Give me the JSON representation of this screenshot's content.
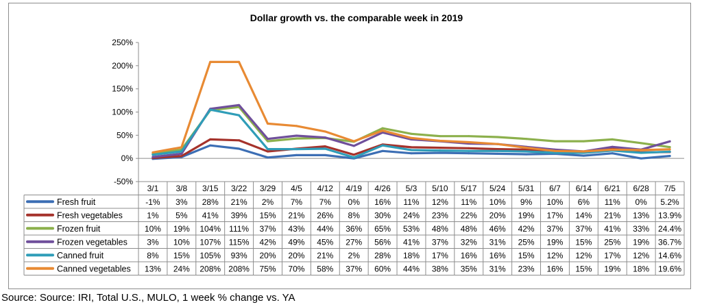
{
  "source_note": "Source: Source: IRI, Total U.S., MULO, 1 week % change vs. YA",
  "chart_data": {
    "type": "line",
    "title": "Dollar growth vs. the comparable week in 2019",
    "xlabel": "",
    "ylabel": "",
    "categories": [
      "3/1",
      "3/8",
      "3/15",
      "3/22",
      "3/29",
      "4/5",
      "4/12",
      "4/19",
      "4/26",
      "5/3",
      "5/10",
      "5/17",
      "5/24",
      "5/31",
      "6/7",
      "6/14",
      "6/21",
      "6/28",
      "7/5"
    ],
    "ylim": [
      -50,
      250
    ],
    "yticks": [
      -50,
      0,
      50,
      100,
      150,
      200,
      250
    ],
    "ytick_labels": [
      "-50%",
      "0%",
      "50%",
      "100%",
      "150%",
      "200%",
      "250%"
    ],
    "grid": false,
    "legend": "data-table",
    "series": [
      {
        "name": "Fresh fruit",
        "color": "#3c6eb4",
        "values": [
          -1,
          3,
          28,
          21,
          2,
          7,
          7,
          0,
          16,
          11,
          12,
          11,
          10,
          9,
          10,
          6,
          11,
          0,
          5.2
        ],
        "labels": [
          "-1%",
          "3%",
          "28%",
          "21%",
          "2%",
          "7%",
          "7%",
          "0%",
          "16%",
          "11%",
          "12%",
          "11%",
          "10%",
          "9%",
          "10%",
          "6%",
          "11%",
          "0%",
          "5.2%"
        ]
      },
      {
        "name": "Fresh vegetables",
        "color": "#a5322b",
        "values": [
          1,
          5,
          41,
          39,
          15,
          21,
          26,
          8,
          30,
          24,
          23,
          22,
          20,
          19,
          17,
          14,
          21,
          13,
          13.9
        ],
        "labels": [
          "1%",
          "5%",
          "41%",
          "39%",
          "15%",
          "21%",
          "26%",
          "8%",
          "30%",
          "24%",
          "23%",
          "22%",
          "20%",
          "19%",
          "17%",
          "14%",
          "21%",
          "13%",
          "13.9%"
        ]
      },
      {
        "name": "Frozen fruit",
        "color": "#8cb04c",
        "values": [
          10,
          19,
          104,
          111,
          37,
          43,
          44,
          36,
          65,
          53,
          48,
          48,
          46,
          42,
          37,
          37,
          41,
          33,
          24.4
        ],
        "labels": [
          "10%",
          "19%",
          "104%",
          "111%",
          "37%",
          "43%",
          "44%",
          "36%",
          "65%",
          "53%",
          "48%",
          "48%",
          "46%",
          "42%",
          "37%",
          "37%",
          "41%",
          "33%",
          "24.4%"
        ]
      },
      {
        "name": "Frozen vegetables",
        "color": "#6f4f9b",
        "values": [
          3,
          10,
          107,
          115,
          42,
          49,
          45,
          27,
          56,
          41,
          37,
          32,
          31,
          25,
          19,
          15,
          25,
          19,
          36.7
        ],
        "labels": [
          "3%",
          "10%",
          "107%",
          "115%",
          "42%",
          "49%",
          "45%",
          "27%",
          "56%",
          "41%",
          "37%",
          "32%",
          "31%",
          "25%",
          "19%",
          "15%",
          "25%",
          "19%",
          "36.7%"
        ]
      },
      {
        "name": "Canned fruit",
        "color": "#2f9db8",
        "values": [
          8,
          15,
          105,
          93,
          20,
          20,
          21,
          2,
          28,
          18,
          17,
          16,
          16,
          15,
          12,
          12,
          17,
          12,
          14.6
        ],
        "labels": [
          "8%",
          "15%",
          "105%",
          "93%",
          "20%",
          "20%",
          "21%",
          "2%",
          "28%",
          "18%",
          "17%",
          "16%",
          "16%",
          "15%",
          "12%",
          "12%",
          "17%",
          "12%",
          "14.6%"
        ]
      },
      {
        "name": "Canned vegetables",
        "color": "#e88a33",
        "values": [
          13,
          24,
          208,
          208,
          75,
          70,
          58,
          37,
          60,
          44,
          38,
          35,
          31,
          23,
          16,
          15,
          19,
          18,
          19.6
        ],
        "labels": [
          "13%",
          "24%",
          "208%",
          "208%",
          "75%",
          "70%",
          "58%",
          "37%",
          "60%",
          "44%",
          "38%",
          "35%",
          "31%",
          "23%",
          "16%",
          "15%",
          "19%",
          "18%",
          "19.6%"
        ]
      }
    ]
  }
}
